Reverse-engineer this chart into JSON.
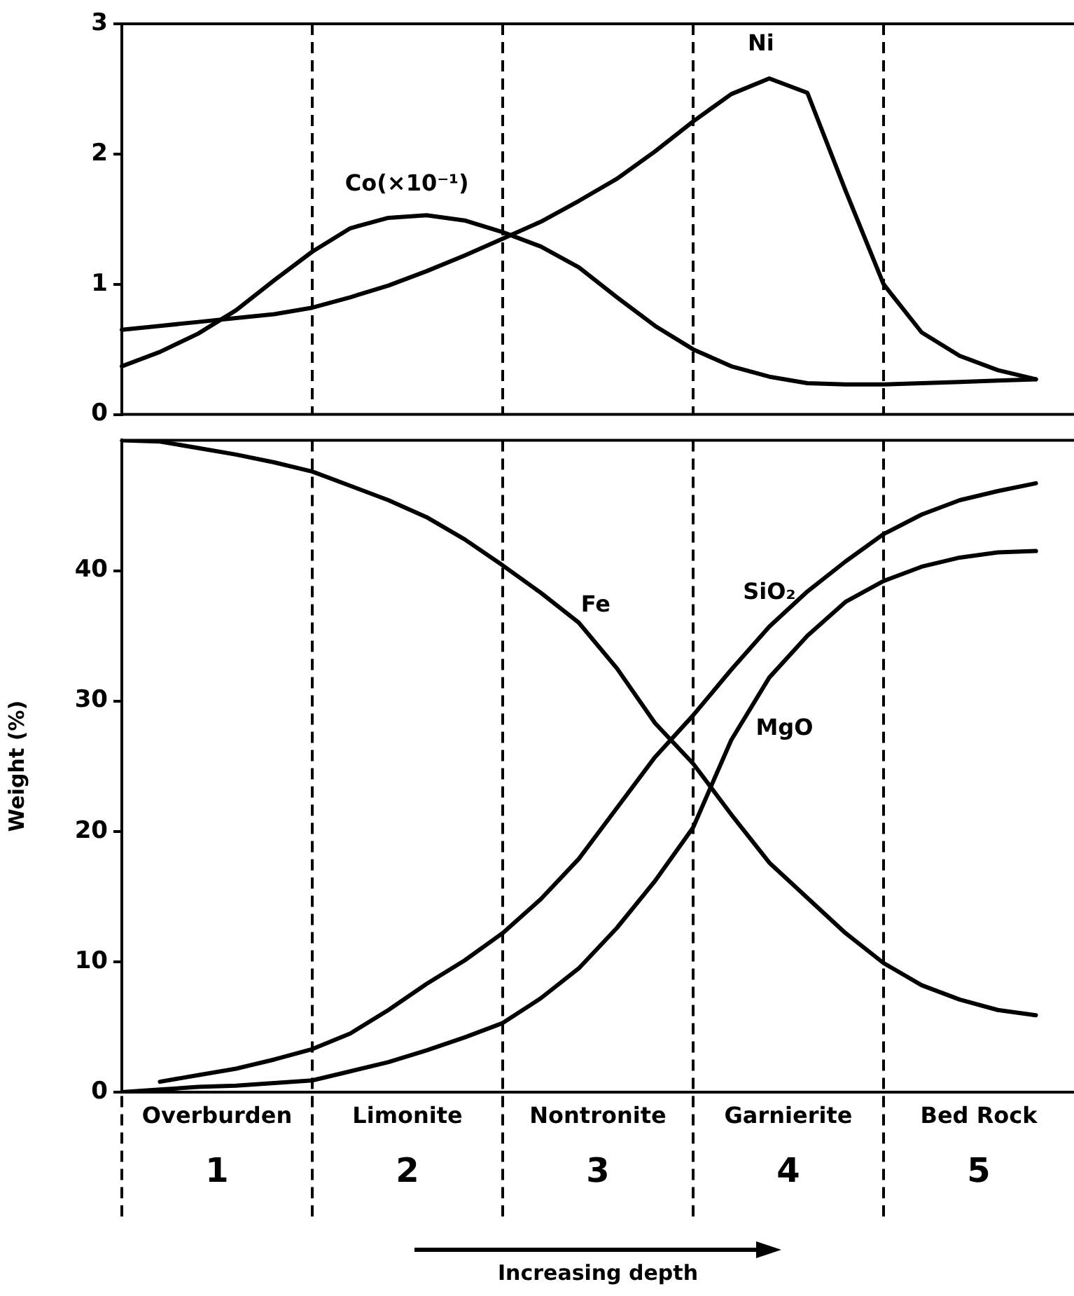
{
  "chart_data": [
    {
      "type": "line",
      "categories": [
        null,
        null,
        null,
        null,
        null,
        null,
        null,
        null,
        null,
        null,
        null,
        null,
        null,
        null,
        null,
        null,
        null,
        null,
        null,
        null,
        null,
        null,
        null,
        null,
        null,
        null
      ],
      "ylim": [
        0,
        3
      ],
      "yticks": [
        0,
        1,
        2,
        3
      ],
      "grid": "x",
      "marker": "none",
      "line_style": "solid",
      "series": [
        {
          "name": "Ni",
          "color": "#000000",
          "values": [
            0.65,
            0.68,
            0.71,
            0.74,
            0.77,
            0.82,
            0.9,
            0.99,
            1.1,
            1.22,
            1.35,
            1.48,
            1.64,
            1.81,
            2.02,
            2.25,
            2.46,
            2.58,
            2.47,
            1.72,
            1.0,
            0.63,
            0.45,
            0.34,
            0.27,
            null
          ]
        },
        {
          "name": "Co(×10⁻¹)",
          "color": "#000000",
          "values": [
            0.37,
            0.48,
            0.62,
            0.8,
            1.03,
            1.25,
            1.43,
            1.51,
            1.53,
            1.49,
            1.4,
            1.29,
            1.13,
            0.9,
            0.68,
            0.5,
            0.37,
            0.29,
            0.24,
            0.23,
            0.23,
            0.24,
            0.25,
            0.26,
            0.27,
            null
          ]
        }
      ]
    },
    {
      "type": "line",
      "categories": [
        null,
        null,
        null,
        null,
        null,
        null,
        null,
        null,
        null,
        null,
        null,
        null,
        null,
        null,
        null,
        null,
        null,
        null,
        null,
        null,
        null,
        null,
        null,
        null,
        null,
        null
      ],
      "ylim": [
        0,
        50
      ],
      "yticks": [
        0,
        10,
        20,
        30,
        40
      ],
      "ylabel": "Weight (%)",
      "grid": "x",
      "marker": "none",
      "line_style": "solid",
      "series": [
        {
          "name": "Fe",
          "color": "#000000",
          "values": [
            50,
            49.9,
            49.4,
            48.9,
            48.3,
            47.6,
            46.5,
            45.4,
            44.1,
            42.4,
            40.4,
            38.3,
            36,
            32.5,
            28.3,
            25.2,
            21.3,
            17.6,
            14.9,
            12.2,
            9.9,
            8.2,
            7.1,
            6.3,
            5.9,
            null
          ]
        },
        {
          "name": "SiO₂",
          "color": "#000000",
          "values": [
            null,
            0.8,
            1.3,
            1.8,
            2.5,
            3.3,
            4.5,
            6.3,
            8.3,
            10.1,
            12.2,
            14.8,
            17.9,
            21.8,
            25.7,
            28.9,
            32.4,
            35.7,
            38.4,
            40.7,
            42.8,
            44.3,
            45.4,
            46.1,
            46.7,
            null
          ]
        },
        {
          "name": "MgO",
          "color": "#000000",
          "values": [
            0,
            0.2,
            0.4,
            0.5,
            0.7,
            0.9,
            1.6,
            2.3,
            3.2,
            4.2,
            5.3,
            7.2,
            9.5,
            12.6,
            16.2,
            20.3,
            27,
            31.8,
            35,
            37.6,
            39.2,
            40.3,
            41,
            41.4,
            41.5,
            null
          ]
        }
      ],
      "annotations": [
        "Overburden",
        "Limonite",
        "Nontronite",
        "Garnierite",
        "Bed Rock",
        "1",
        "2",
        "3",
        "4",
        "5",
        "Increasing depth"
      ]
    }
  ]
}
